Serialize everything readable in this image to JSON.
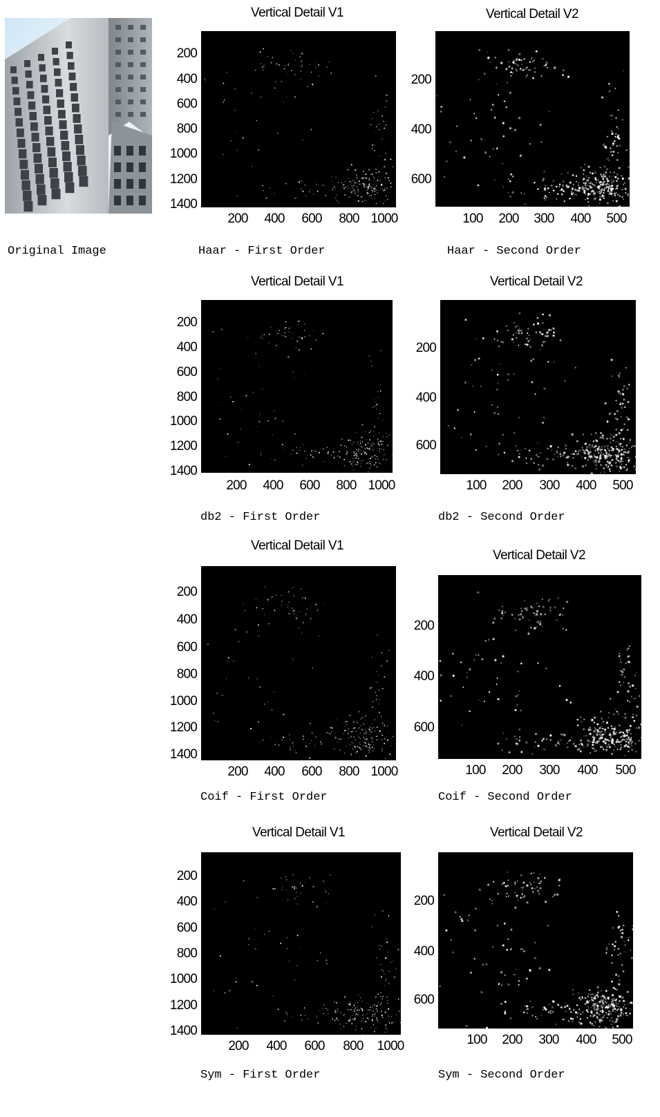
{
  "original": {
    "caption": "Original Image"
  },
  "panels": [
    {
      "id": "haar-first",
      "title": "Vertical Detail V1",
      "caption": "Haar - First Order",
      "yticks": [
        "200",
        "400",
        "600",
        "800",
        "1000",
        "1200",
        "1400"
      ],
      "xticks": [
        "200",
        "400",
        "600",
        "800",
        "1000"
      ]
    },
    {
      "id": "haar-second",
      "title": "Vertical Detail V2",
      "caption": "Haar - Second Order",
      "yticks": [
        "200",
        "400",
        "600"
      ],
      "xticks": [
        "100",
        "200",
        "300",
        "400",
        "500"
      ]
    },
    {
      "id": "db2-first",
      "title": "Vertical Detail V1",
      "caption": "db2 - First Order",
      "yticks": [
        "200",
        "400",
        "600",
        "800",
        "1000",
        "1200",
        "1400"
      ],
      "xticks": [
        "200",
        "400",
        "600",
        "800",
        "1000"
      ]
    },
    {
      "id": "db2-second",
      "title": "Vertical Detail V2",
      "caption": "db2 - Second Order",
      "yticks": [
        "200",
        "400",
        "600"
      ],
      "xticks": [
        "100",
        "200",
        "300",
        "400",
        "500"
      ]
    },
    {
      "id": "coif-first",
      "title": "Vertical Detail V1",
      "caption": "Coif - First Order",
      "yticks": [
        "200",
        "400",
        "600",
        "800",
        "1000",
        "1200",
        "1400"
      ],
      "xticks": [
        "200",
        "400",
        "600",
        "800",
        "1000"
      ]
    },
    {
      "id": "coif-second",
      "title": "Vertical Detail V2",
      "caption": "Coif - Second Order",
      "yticks": [
        "200",
        "400",
        "600"
      ],
      "xticks": [
        "100",
        "200",
        "300",
        "400",
        "500"
      ]
    },
    {
      "id": "sym-first",
      "title": "Vertical Detail V1",
      "caption": "Sym - First Order",
      "yticks": [
        "200",
        "400",
        "600",
        "800",
        "1000",
        "1200",
        "1400"
      ],
      "xticks": [
        "200",
        "400",
        "600",
        "800",
        "1000"
      ]
    },
    {
      "id": "sym-second",
      "title": "Vertical Detail V2",
      "caption": "Sym - Second Order",
      "yticks": [
        "200",
        "400",
        "600"
      ],
      "xticks": [
        "100",
        "200",
        "300",
        "400",
        "500"
      ]
    }
  ],
  "colors": {
    "background": "#ffffff",
    "plot": "#000000",
    "speckle": "#ffffff"
  }
}
